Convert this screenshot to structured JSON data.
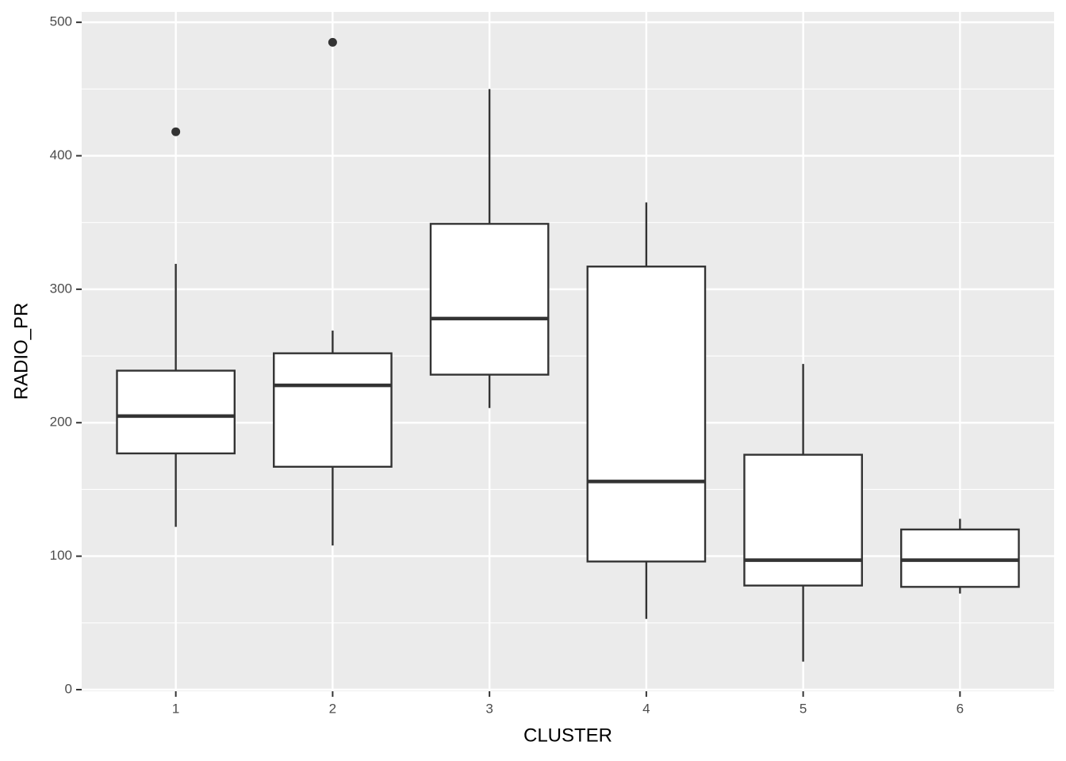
{
  "chart_data": {
    "type": "box",
    "x_label": "CLUSTER",
    "y_label": "RADIO_PR",
    "categories": [
      "1",
      "2",
      "3",
      "4",
      "5",
      "6"
    ],
    "boxes": [
      {
        "min": 122,
        "q1": 177,
        "median": 205,
        "q3": 239,
        "max": 319,
        "outliers": [
          418
        ]
      },
      {
        "min": 108,
        "q1": 167,
        "median": 228,
        "q3": 252,
        "max": 269,
        "outliers": [
          485
        ]
      },
      {
        "min": 211,
        "q1": 236,
        "median": 278,
        "q3": 349,
        "max": 450,
        "outliers": []
      },
      {
        "min": 53,
        "q1": 96,
        "median": 156,
        "q3": 317,
        "max": 365,
        "outliers": []
      },
      {
        "min": 21,
        "q1": 78,
        "median": 97,
        "q3": 176,
        "max": 244,
        "outliers": []
      },
      {
        "min": 72,
        "q1": 77,
        "median": 97,
        "q3": 120,
        "max": 128,
        "outliers": []
      }
    ],
    "color": "#333333",
    "fill": "#ffffff",
    "ylim": [
      -1.2,
      507.8
    ],
    "yticks": [
      0,
      100,
      200,
      300,
      400,
      500
    ],
    "grid": true
  }
}
